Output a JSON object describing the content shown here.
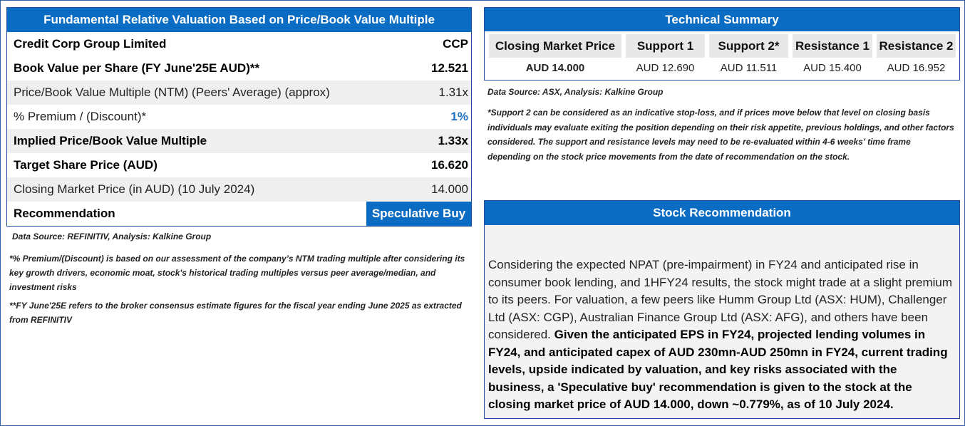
{
  "valuation": {
    "title": "Fundamental Relative Valuation Based on Price/Book Value Multiple",
    "company": "Credit Corp Group Limited",
    "ticker": "CCP",
    "rows": [
      {
        "label": "Book Value per Share (FY June'25E AUD)**",
        "value": "12.521"
      },
      {
        "label": "Price/Book Value Multiple (NTM)  (Peers' Average) (approx)",
        "value": "1.31x"
      },
      {
        "label": "% Premium / (Discount)*",
        "value": "1%"
      },
      {
        "label": "Implied Price/Book Value Multiple",
        "value": "1.33x"
      },
      {
        "label": "Target Share Price (AUD)",
        "value": "16.620"
      },
      {
        "label": "Closing Market Price (in AUD) (10 July 2024)",
        "value": "14.000"
      }
    ],
    "recommendation_label": "Recommendation",
    "recommendation_value": "Speculative Buy",
    "source": "Data Source: REFINITIV, Analysis: Kalkine Group",
    "note1": "*% Premium/(Discount) is based on our assessment of the company’s NTM trading multiple after considering its key growth drivers, economic moat, stock's historical trading multiples versus peer average/median, and investment risks",
    "note2": "**FY June'25E refers to the broker consensus estimate figures for the fiscal year ending June 2025  as extracted from REFINITIV"
  },
  "technical": {
    "title": "Technical Summary",
    "columns": [
      {
        "header": "Closing Market Price",
        "value": "AUD 14.000"
      },
      {
        "header": "Support 1",
        "value": "AUD 12.690"
      },
      {
        "header": "Support 2*",
        "value": "AUD 11.511"
      },
      {
        "header": "Resistance 1",
        "value": "AUD 15.400"
      },
      {
        "header": "Resistance 2",
        "value": "AUD 16.952"
      }
    ],
    "source": "Data Source: ASX, Analysis: Kalkine Group",
    "note": "*Support 2 can be considered as an indicative stop-loss, and if prices move below that level on closing basis individuals may evaluate exiting the position depending on their risk appetite, previous holdings, and other factors considered. The support and resistance levels may need to be re-evaluated within 4-6 weeks’ time frame depending on the stock price movements from the date of recommendation on the stock."
  },
  "stock_recommendation": {
    "title": "Stock Recommendation",
    "text_plain": "Considering the expected NPAT (pre-impairment) in FY24 and anticipated rise in consumer book lending, and 1HFY24 results, the stock might trade at a slight premium to its peers. For valuation, a few peers like Humm Group Ltd (ASX: HUM), Challenger Ltd (ASX: CGP), Australian Finance Group Ltd (ASX: AFG), and others have been considered. ",
    "text_bold": "Given the anticipated EPS in FY24, projected lending volumes in FY24, and anticipated capex of AUD 230mn-AUD 250mn in FY24, current trading levels, upside indicated by valuation, and key risks associated with the business, a 'Speculative buy' recommendation is given to the stock at the closing market price of AUD 14.000, down ~0.779%, as of 10 July 2024."
  },
  "colors": {
    "header_blue": "#0a6cc2",
    "grey_row": "#efefef",
    "premium_blue": "#1f6fc0"
  }
}
